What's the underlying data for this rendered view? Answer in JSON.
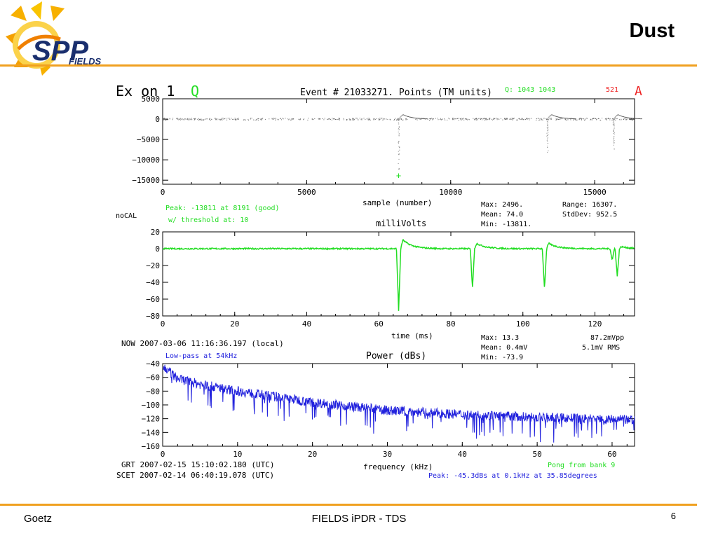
{
  "slide": {
    "title": "Dust",
    "footer_left": "Goetz",
    "footer_center": "FIELDS iPDR - TDS",
    "page_number": "6",
    "logo_text": "SPP",
    "logo_subtext": "FIELDS"
  },
  "colors": {
    "accent": "#f0a020",
    "green": "#22dd22",
    "blue": "#2222dd",
    "red": "#ee2222"
  },
  "header": {
    "channel": "Ex  on  1",
    "q_label": "Q",
    "event": "Event # 21033271. Points (TM units)",
    "q_values": "Q:   1043  1043",
    "a_value": "521",
    "a_label": "A"
  },
  "labels": {
    "nocal": "noCAL",
    "peak": "Peak: -13811 at  8191 (good)",
    "threshold": "w/ threshold at:      10",
    "millivolts": "milliVolts",
    "now": "NOW 2007-03-06 11:16:36.197 (local)",
    "lowpass": "Low-pass at 54kHz",
    "power": "Power (dBs)",
    "grt": "GRT 2007-02-15 15:10:02.180 (UTC)",
    "scet": "SCET 2007-02-14 06:40:19.078 (UTC)",
    "pong": "Pong from bank   9",
    "peak_power": "Peak:   -45.3dBs at    0.1kHz at    35.85degrees"
  },
  "stats": {
    "p1": {
      "max": "Max:      2496.",
      "mean": "Mean:       74.0",
      "min": "Min:   -13811.",
      "range": "Range:  16307.",
      "stddev": "StdDev:     952.5"
    },
    "p2": {
      "max": "Max:        13.3",
      "mean": "Mean:       0.4mV",
      "min": "Min:     -73.9",
      "vpp": "87.2mVpp",
      "rms": "5.1mV RMS"
    }
  },
  "chart_data": [
    {
      "type": "scatter",
      "xlabel": "sample (number)",
      "ylabel": "",
      "xlim": [
        0,
        16384
      ],
      "ylim": [
        -16000,
        5000
      ],
      "xticks": [
        0,
        5000,
        10000,
        15000
      ],
      "yticks": [
        5000,
        0,
        -5000,
        -10000,
        -15000
      ],
      "grid": false,
      "baseline": 0,
      "spikes": [
        {
          "x": 8191,
          "min": -13811
        },
        {
          "x": 13350,
          "min": -9000
        },
        {
          "x": 15650,
          "min": -8000
        }
      ],
      "marker": {
        "x": 8191,
        "y": -13811,
        "symbol": "+"
      }
    },
    {
      "type": "line",
      "xlabel": "time (ms)",
      "ylabel": "",
      "xlim": [
        0,
        131
      ],
      "ylim": [
        -80,
        20
      ],
      "xticks": [
        0,
        20,
        40,
        60,
        80,
        100,
        120
      ],
      "yticks": [
        20,
        0,
        -20,
        -40,
        -60,
        -80
      ],
      "grid": false,
      "baseline": 0,
      "events": [
        {
          "t": 65.5,
          "min": -73.9,
          "overshoot": 13.3
        },
        {
          "t": 86.0,
          "min": -47,
          "overshoot": 8
        },
        {
          "t": 106.0,
          "min": -48,
          "overshoot": 8
        },
        {
          "t": 124.8,
          "min": -14,
          "overshoot": 0
        },
        {
          "t": 126.2,
          "min": -33,
          "overshoot": 3
        }
      ]
    },
    {
      "type": "line",
      "xlabel": "frequency (kHz)",
      "ylabel": "",
      "xlim": [
        0,
        63
      ],
      "ylim": [
        -160,
        -40
      ],
      "xticks": [
        0,
        10,
        20,
        30,
        40,
        50,
        60
      ],
      "yticks": [
        -40,
        -60,
        -80,
        -100,
        -120,
        -140,
        -160
      ],
      "grid": false,
      "envelope": [
        {
          "x": 0.1,
          "y": -45.3
        },
        {
          "x": 2,
          "y": -62
        },
        {
          "x": 5,
          "y": -70
        },
        {
          "x": 10,
          "y": -80
        },
        {
          "x": 20,
          "y": -96
        },
        {
          "x": 30,
          "y": -108
        },
        {
          "x": 40,
          "y": -114
        },
        {
          "x": 50,
          "y": -118
        },
        {
          "x": 63,
          "y": -122
        }
      ]
    }
  ]
}
